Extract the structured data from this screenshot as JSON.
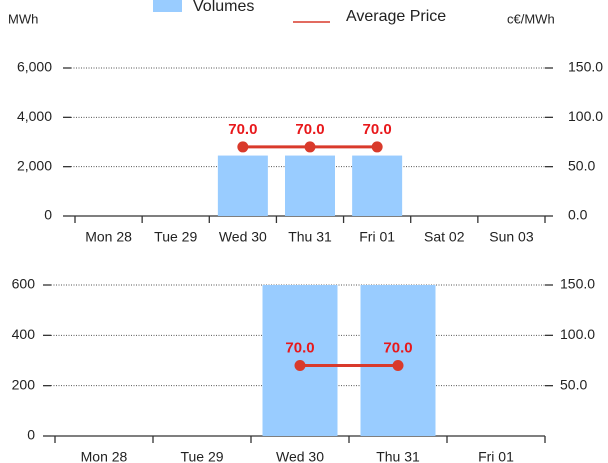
{
  "chart_data": [
    {
      "type": "bar",
      "y_label": "MWh",
      "y2_label": "c€/MWh",
      "categories": [
        "Mon 28",
        "Tue 29",
        "Wed 30",
        "Thu 31",
        "Fri 01",
        "Sat 02",
        "Sun 03"
      ],
      "series": [
        {
          "name": "Volumes",
          "type": "bar",
          "color": "#99ccff",
          "values": [
            null,
            null,
            2450,
            2450,
            2450,
            null,
            null
          ]
        },
        {
          "name": "Average Price",
          "type": "line",
          "axis": "y2",
          "color": "#d93a2b",
          "values": [
            null,
            null,
            70,
            70,
            70,
            null,
            null
          ],
          "value_labels": [
            null,
            null,
            "70.0",
            "70.0",
            "70.0",
            null,
            null
          ]
        }
      ],
      "ylim": [
        0,
        6000
      ],
      "yticks": [
        0,
        {
          "value": 2000,
          "label": "2,000"
        },
        {
          "value": 4000,
          "label": "4,000"
        },
        {
          "value": 6000,
          "label": "6,000"
        }
      ],
      "y2lim": [
        0,
        150
      ],
      "y2ticks": [
        {
          "value": 0,
          "label": "0.0"
        },
        {
          "value": 50,
          "label": "50.0"
        },
        {
          "value": 100,
          "label": "100.0"
        },
        {
          "value": 150,
          "label": "150.0"
        }
      ],
      "grid": true,
      "legend": "top"
    },
    {
      "type": "bar",
      "categories": [
        "Mon 28",
        "Tue 29",
        "Wed 30",
        "Thu 31",
        "Fri 01"
      ],
      "series": [
        {
          "type": "bar",
          "color": "#99ccff",
          "values": [
            null,
            null,
            600,
            600,
            null
          ]
        },
        {
          "type": "line",
          "axis": "y2",
          "color": "#d93a2b",
          "values": [
            null,
            null,
            70,
            70,
            null
          ],
          "value_labels": [
            null,
            null,
            "70.0",
            "70.0",
            null
          ]
        }
      ],
      "ylim": [
        0,
        600
      ],
      "yticks": [
        0,
        200,
        400,
        600
      ],
      "y2lim": [
        0,
        150
      ],
      "y2ticks": [
        {
          "value": 50,
          "label": "50.0"
        },
        {
          "value": 100,
          "label": "100.0"
        },
        {
          "value": 150,
          "label": "150.0"
        }
      ],
      "grid": true
    }
  ]
}
